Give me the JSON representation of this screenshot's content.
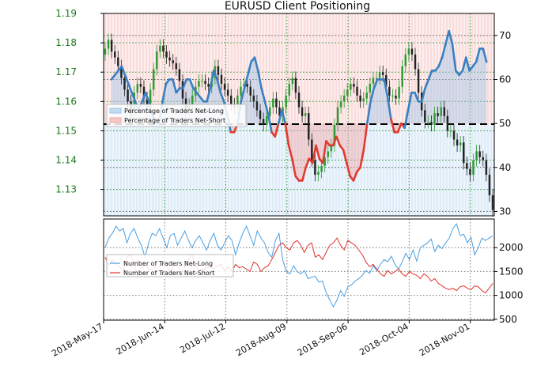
{
  "chart_data": [
    {
      "type": "candlestick+line",
      "title": "EURUSD Client Positioning",
      "x_labels": [
        "2018-May-17",
        "2018-Jun-14",
        "2018-Jul-12",
        "2018-Aug-09",
        "2018-Sep-06",
        "2018-Oct-04",
        "2018-Nov-01"
      ],
      "x_range": [
        "2018-May-17",
        "2018-Nov-12"
      ],
      "price_axis": {
        "side": "left",
        "ticks": [
          "1.19",
          "1.18",
          "1.17",
          "1.16",
          "1.15",
          "1.14",
          "1.13"
        ],
        "ylim": [
          1.121,
          1.19
        ]
      },
      "percent_axis": {
        "side": "right",
        "ticks": [
          "70",
          "60",
          "50",
          "40",
          "30"
        ],
        "ylim": [
          29,
          75
        ],
        "reference_line": 50
      },
      "legend": {
        "placement": "left",
        "entries": [
          {
            "label": "Percentage of Traders Net-Long",
            "color": "#9fc6e8"
          },
          {
            "label": "Percentage of Traders Net-Short",
            "color": "#f4a7a3"
          }
        ]
      },
      "series": [
        {
          "name": "Percentage of Traders Net-Long",
          "color": "#3a7fc1",
          "values": [
            60,
            61,
            62,
            63,
            61,
            59,
            57,
            55,
            53,
            55,
            57,
            55,
            52,
            50,
            50,
            55,
            59,
            60,
            60,
            57,
            58,
            58,
            60,
            60,
            58,
            57,
            56,
            55,
            55,
            58,
            62,
            60,
            57,
            55,
            52,
            48,
            48,
            50,
            55,
            58,
            61,
            64,
            65,
            62,
            58,
            55,
            52,
            48,
            47,
            50,
            53,
            50,
            45,
            42,
            38,
            37,
            37,
            40,
            42,
            41,
            45,
            42,
            41,
            46,
            45,
            45,
            47,
            45,
            44,
            41,
            38,
            37,
            39,
            40,
            44,
            50,
            55,
            58,
            60,
            60,
            60,
            56,
            51,
            48,
            48,
            50,
            49,
            53,
            57,
            57,
            55,
            55,
            58,
            60,
            62,
            62,
            63,
            65,
            68,
            71,
            68,
            62,
            61,
            62,
            65,
            62,
            63,
            64,
            67,
            67,
            64
          ]
        },
        {
          "name": "EURUSD price (OHLC candles)",
          "color_up": "#2f9a2f",
          "color_down": "#222222",
          "values": [
            1.178,
            1.181,
            1.177,
            1.175,
            1.172,
            1.168,
            1.164,
            1.16,
            1.156,
            1.163,
            1.166,
            1.165,
            1.161,
            1.159,
            1.164,
            1.171,
            1.177,
            1.179,
            1.177,
            1.175,
            1.174,
            1.173,
            1.171,
            1.167,
            1.161,
            1.157,
            1.159,
            1.162,
            1.165,
            1.167,
            1.167,
            1.166,
            1.165,
            1.168,
            1.172,
            1.169,
            1.166,
            1.164,
            1.162,
            1.159,
            1.158,
            1.162,
            1.165,
            1.166,
            1.165,
            1.162,
            1.16,
            1.157,
            1.154,
            1.152,
            1.155,
            1.158,
            1.161,
            1.158,
            1.155,
            1.158,
            1.162,
            1.166,
            1.168,
            1.163,
            1.158,
            1.155,
            1.156,
            1.147,
            1.14,
            1.135,
            1.136,
            1.138,
            1.141,
            1.143,
            1.145,
            1.152,
            1.158,
            1.16,
            1.162,
            1.164,
            1.166,
            1.165,
            1.162,
            1.16,
            1.161,
            1.163,
            1.166,
            1.168,
            1.168,
            1.17,
            1.169,
            1.165,
            1.162,
            1.162,
            1.161,
            1.165,
            1.172,
            1.176,
            1.178,
            1.176,
            1.171,
            1.163,
            1.157,
            1.153,
            1.153,
            1.152,
            1.156,
            1.155,
            1.158,
            1.155,
            1.15,
            1.15,
            1.147,
            1.145,
            1.146,
            1.139,
            1.137,
            1.135,
            1.14,
            1.143,
            1.141,
            1.14,
            1.135,
            1.128,
            1.123
          ]
        }
      ]
    },
    {
      "type": "line",
      "title": "",
      "x_range": [
        "2018-May-17",
        "2018-Nov-12"
      ],
      "y_axis": {
        "side": "right",
        "ticks": [
          "2000",
          "1500",
          "1000",
          "500"
        ],
        "ylim": [
          480,
          2600
        ]
      },
      "legend": {
        "placement": "left"
      },
      "series": [
        {
          "name": "Number of Traders Net-Long",
          "color": "#4a9ee0",
          "values": [
            2000,
            2200,
            2300,
            2450,
            2350,
            2400,
            2100,
            2300,
            2400,
            2200,
            2050,
            1800,
            2100,
            2300,
            2250,
            2400,
            2200,
            2000,
            2250,
            2300,
            2050,
            2200,
            2350,
            2150,
            2000,
            2150,
            2250,
            2100,
            1950,
            2150,
            2300,
            2050,
            1950,
            2100,
            2250,
            2150,
            1850,
            2100,
            2300,
            2450,
            2250,
            2050,
            2350,
            2200,
            2100,
            1900,
            1800,
            2150,
            2300,
            1750,
            1500,
            1450,
            1620,
            1500,
            1450,
            1520,
            1350,
            1380,
            1400,
            1280,
            1300,
            1060,
            900,
            760,
            900,
            1100,
            980,
            1180,
            1220,
            1300,
            1350,
            1420,
            1520,
            1460,
            1620,
            1520,
            1650,
            1750,
            1700,
            1820,
            1650,
            1550,
            1700,
            1880,
            1750,
            1950,
            1720,
            2000,
            2050,
            2100,
            2180,
            1920,
            2050,
            1980,
            2100,
            2200,
            2400,
            2500,
            2250,
            2280,
            2100,
            2220,
            1850,
            2000,
            2200,
            2150,
            2200,
            2250
          ]
        },
        {
          "name": "Number of Traders Net-Short",
          "color": "#e0322b",
          "values": [
            1800,
            1620,
            1750,
            1650,
            1600,
            1520,
            1800,
            1850,
            1650,
            1400,
            1580,
            1650,
            1550,
            1520,
            1600,
            1580,
            1700,
            1600,
            1500,
            1650,
            1600,
            1450,
            1600,
            1750,
            1850,
            1600,
            1520,
            1550,
            1580,
            1600,
            1550,
            1620,
            1650,
            1520,
            1600,
            1500,
            1650,
            1580,
            1600,
            1550,
            1500,
            1700,
            1650,
            1500,
            1580,
            1620,
            1750,
            1900,
            2050,
            2100,
            2000,
            1950,
            2100,
            2150,
            2050,
            1900,
            2050,
            2100,
            1800,
            1850,
            1750,
            1900,
            2050,
            2100,
            2200,
            2050,
            1950,
            2150,
            2100,
            2050,
            1950,
            1850,
            1700,
            1600,
            1650,
            1550,
            1450,
            1400,
            1520,
            1450,
            1500,
            1550,
            1450,
            1400,
            1500,
            1450,
            1420,
            1350,
            1450,
            1400,
            1300,
            1350,
            1250,
            1200,
            1150,
            1120,
            1150,
            1100,
            1180,
            1200,
            1150,
            1120,
            1200,
            1180,
            1100,
            1050,
            1150,
            1250
          ]
        }
      ]
    }
  ]
}
